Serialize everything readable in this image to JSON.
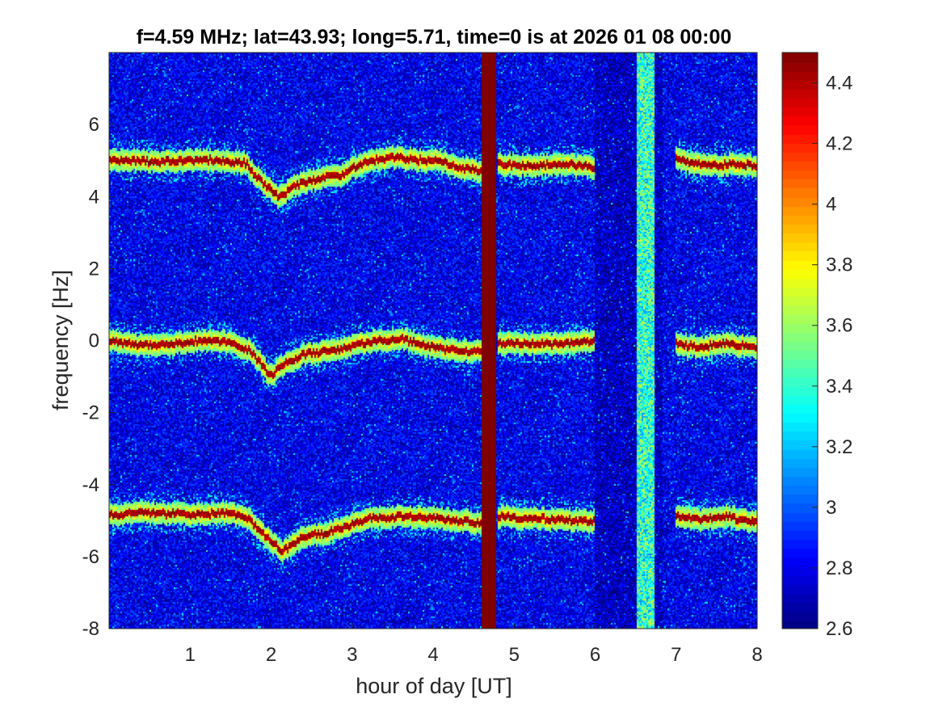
{
  "chart_data": {
    "type": "heatmap",
    "title": "f=4.59 MHz;  lat=43.93; long=5.71, time=0 is at 2026 01 08 00:00",
    "xlabel": "hour of day [UT]",
    "ylabel": "frequency [Hz]",
    "xlim": [
      0,
      8
    ],
    "ylim": [
      -8,
      8
    ],
    "x_ticks": [
      "1",
      "2",
      "3",
      "4",
      "5",
      "6",
      "7",
      "8"
    ],
    "y_ticks": [
      "-8",
      "-6",
      "-4",
      "-2",
      "0",
      "2",
      "4",
      "6"
    ],
    "colorbar": {
      "range": [
        2.6,
        4.5
      ],
      "ticks": [
        "2.6",
        "2.8",
        "3",
        "3.2",
        "3.4",
        "3.6",
        "3.8",
        "4",
        "4.2",
        "4.4"
      ],
      "colormap": "jet"
    },
    "background_level": 2.8,
    "traces": [
      {
        "name_hint": "upper",
        "points": [
          [
            0,
            5.0
          ],
          [
            0.3,
            5.0
          ],
          [
            0.6,
            4.95
          ],
          [
            1.0,
            5.0
          ],
          [
            1.4,
            5.0
          ],
          [
            1.7,
            4.9
          ],
          [
            1.85,
            4.5
          ],
          [
            2.0,
            4.2
          ],
          [
            2.1,
            3.95
          ],
          [
            2.3,
            4.3
          ],
          [
            2.6,
            4.5
          ],
          [
            2.9,
            4.6
          ],
          [
            3.1,
            4.9
          ],
          [
            3.5,
            5.1
          ],
          [
            3.8,
            5.0
          ],
          [
            4.1,
            5.0
          ],
          [
            4.3,
            4.8
          ],
          [
            4.6,
            4.7
          ]
        ]
      },
      {
        "name_hint": "upper",
        "points": [
          [
            4.8,
            4.9
          ],
          [
            5.2,
            4.85
          ],
          [
            5.6,
            4.9
          ],
          [
            5.8,
            4.85
          ],
          [
            6.0,
            4.8
          ]
        ]
      },
      {
        "name_hint": "upper",
        "points": [
          [
            7.0,
            5.1
          ],
          [
            7.2,
            4.9
          ],
          [
            7.4,
            4.85
          ],
          [
            7.7,
            4.9
          ],
          [
            8.0,
            4.85
          ]
        ]
      },
      {
        "name_hint": "center",
        "points": [
          [
            0,
            0.0
          ],
          [
            0.4,
            -0.15
          ],
          [
            0.8,
            -0.1
          ],
          [
            1.2,
            0.0
          ],
          [
            1.5,
            -0.05
          ],
          [
            1.75,
            -0.3
          ],
          [
            1.9,
            -0.7
          ],
          [
            2.0,
            -1.0
          ],
          [
            2.15,
            -0.7
          ],
          [
            2.4,
            -0.4
          ],
          [
            2.8,
            -0.3
          ],
          [
            3.2,
            -0.05
          ],
          [
            3.6,
            0.05
          ],
          [
            4.0,
            -0.2
          ],
          [
            4.3,
            -0.3
          ],
          [
            4.6,
            -0.3
          ]
        ]
      },
      {
        "name_hint": "center",
        "points": [
          [
            4.8,
            -0.1
          ],
          [
            5.2,
            -0.1
          ],
          [
            5.6,
            -0.1
          ],
          [
            6.0,
            0.0
          ]
        ]
      },
      {
        "name_hint": "center",
        "points": [
          [
            7.0,
            -0.1
          ],
          [
            7.3,
            -0.2
          ],
          [
            7.6,
            -0.1
          ],
          [
            8.0,
            -0.2
          ]
        ]
      },
      {
        "name_hint": "lower",
        "points": [
          [
            0,
            -4.85
          ],
          [
            0.5,
            -4.8
          ],
          [
            1.0,
            -4.85
          ],
          [
            1.5,
            -4.8
          ],
          [
            1.75,
            -5.0
          ],
          [
            1.95,
            -5.5
          ],
          [
            2.15,
            -5.85
          ],
          [
            2.4,
            -5.5
          ],
          [
            2.8,
            -5.3
          ],
          [
            3.2,
            -4.95
          ],
          [
            3.6,
            -4.9
          ],
          [
            4.0,
            -4.95
          ],
          [
            4.3,
            -5.0
          ],
          [
            4.6,
            -5.1
          ]
        ]
      },
      {
        "name_hint": "lower",
        "points": [
          [
            4.8,
            -4.9
          ],
          [
            5.2,
            -4.95
          ],
          [
            5.6,
            -5.0
          ],
          [
            6.0,
            -5.05
          ]
        ]
      },
      {
        "name_hint": "lower",
        "points": [
          [
            7.0,
            -4.9
          ],
          [
            7.3,
            -5.0
          ],
          [
            7.6,
            -4.9
          ],
          [
            8.0,
            -5.05
          ]
        ]
      }
    ],
    "vertical_bands": [
      {
        "x_from": 4.6,
        "x_to": 4.77,
        "level": 4.5
      },
      {
        "x_from": 6.52,
        "x_to": 6.73,
        "level": 3.4
      }
    ],
    "data_gap": {
      "x_from": 6.0,
      "x_to": 6.85
    }
  }
}
